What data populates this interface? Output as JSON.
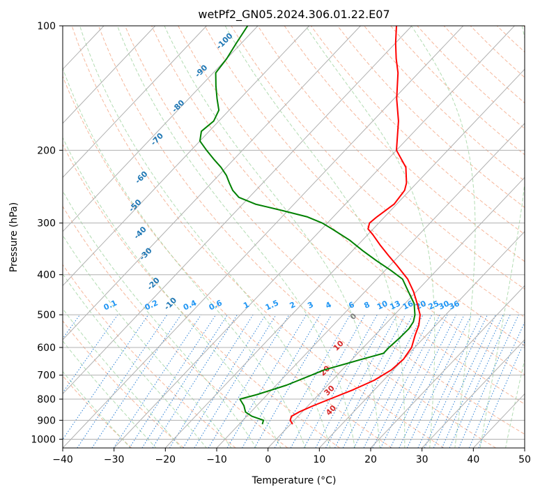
{
  "chart_data": {
    "type": "line",
    "title": "wetPf2_GN05.2024.306.01.22.E07",
    "xlabel": "Temperature (°C)",
    "ylabel": "Pressure (hPa)",
    "xlim": [
      -40,
      50
    ],
    "ylim": [
      1050,
      100
    ],
    "y_scale": "log",
    "x_ticks": [
      "−40",
      "−30",
      "−20",
      "−10",
      "0",
      "10",
      "20",
      "30",
      "40",
      "50"
    ],
    "y_ticks": [
      "100",
      "200",
      "300",
      "400",
      "500",
      "600",
      "700",
      "800",
      "900",
      "1000"
    ],
    "grid": true,
    "colors": {
      "temperature": "#ff0000",
      "dewpoint": "#008000",
      "isotherm": "#b0b0b0",
      "dry_adiabat": "#f4a582",
      "moist_adiabat": "#9fd39f",
      "mixing_ratio": "#2a7fd4",
      "rh_label": "#1f77b4",
      "theta_label": "#d62728"
    },
    "series": [
      {
        "name": "Temperature",
        "pressure": [
          920,
          900,
          880,
          860,
          830,
          800,
          760,
          720,
          680,
          640,
          600,
          560,
          530,
          500,
          470,
          440,
          410,
          380,
          360,
          340,
          320,
          310,
          300,
          290,
          270,
          250,
          240,
          220,
          200,
          170,
          150,
          130,
          120,
          110,
          100
        ],
        "values": [
          0.4,
          -0.8,
          -1.3,
          -0.6,
          1.0,
          3.0,
          5.8,
          8.2,
          9.6,
          10.0,
          9.4,
          7.8,
          6.7,
          5.0,
          2.4,
          -0.5,
          -4.0,
          -8.6,
          -12.0,
          -15.5,
          -19.0,
          -21.0,
          -21.8,
          -21.5,
          -20.5,
          -21.0,
          -22.0,
          -25.0,
          -30.0,
          -35.0,
          -39.5,
          -44.0,
          -47.0,
          -50.0,
          -53.0
        ]
      },
      {
        "name": "Dewpoint",
        "pressure": [
          920,
          900,
          880,
          860,
          830,
          800,
          780,
          740,
          700,
          680,
          640,
          620,
          600,
          570,
          540,
          520,
          500,
          470,
          440,
          410,
          390,
          370,
          350,
          330,
          310,
          300,
          290,
          280,
          270,
          260,
          250,
          240,
          230,
          220,
          210,
          200,
          190,
          180,
          170,
          160,
          150,
          140,
          130,
          120,
          110,
          100
        ],
        "values": [
          -5.5,
          -6.0,
          -9.0,
          -11.0,
          -12.5,
          -14.5,
          -12.0,
          -8.0,
          -5.0,
          -3.5,
          2.0,
          5.0,
          5.0,
          5.3,
          5.4,
          5.0,
          4.0,
          1.8,
          -1.5,
          -5.0,
          -9.0,
          -13.5,
          -18.0,
          -22.5,
          -28.0,
          -31.0,
          -35.0,
          -41.0,
          -47.5,
          -52.0,
          -54.5,
          -56.5,
          -58.5,
          -61.0,
          -64.0,
          -67.0,
          -70.0,
          -71.5,
          -71.0,
          -72.0,
          -74.5,
          -77.0,
          -79.5,
          -80.0,
          -81.0,
          -82.0
        ]
      }
    ],
    "rh_labels": [
      "-100",
      "-90",
      "-80",
      "-70",
      "-60",
      "-50",
      "-40",
      "-30",
      "-20",
      "-10"
    ],
    "mixing_ratio_labels": [
      "0.1",
      "0.2",
      "0.4",
      "0.6",
      "1",
      "1.5",
      "2",
      "3",
      "4",
      "6",
      "8",
      "10",
      "13",
      "16",
      "20",
      "25",
      "30",
      "36"
    ],
    "theta_labels": [
      "0",
      "10",
      "20",
      "30",
      "40"
    ]
  }
}
